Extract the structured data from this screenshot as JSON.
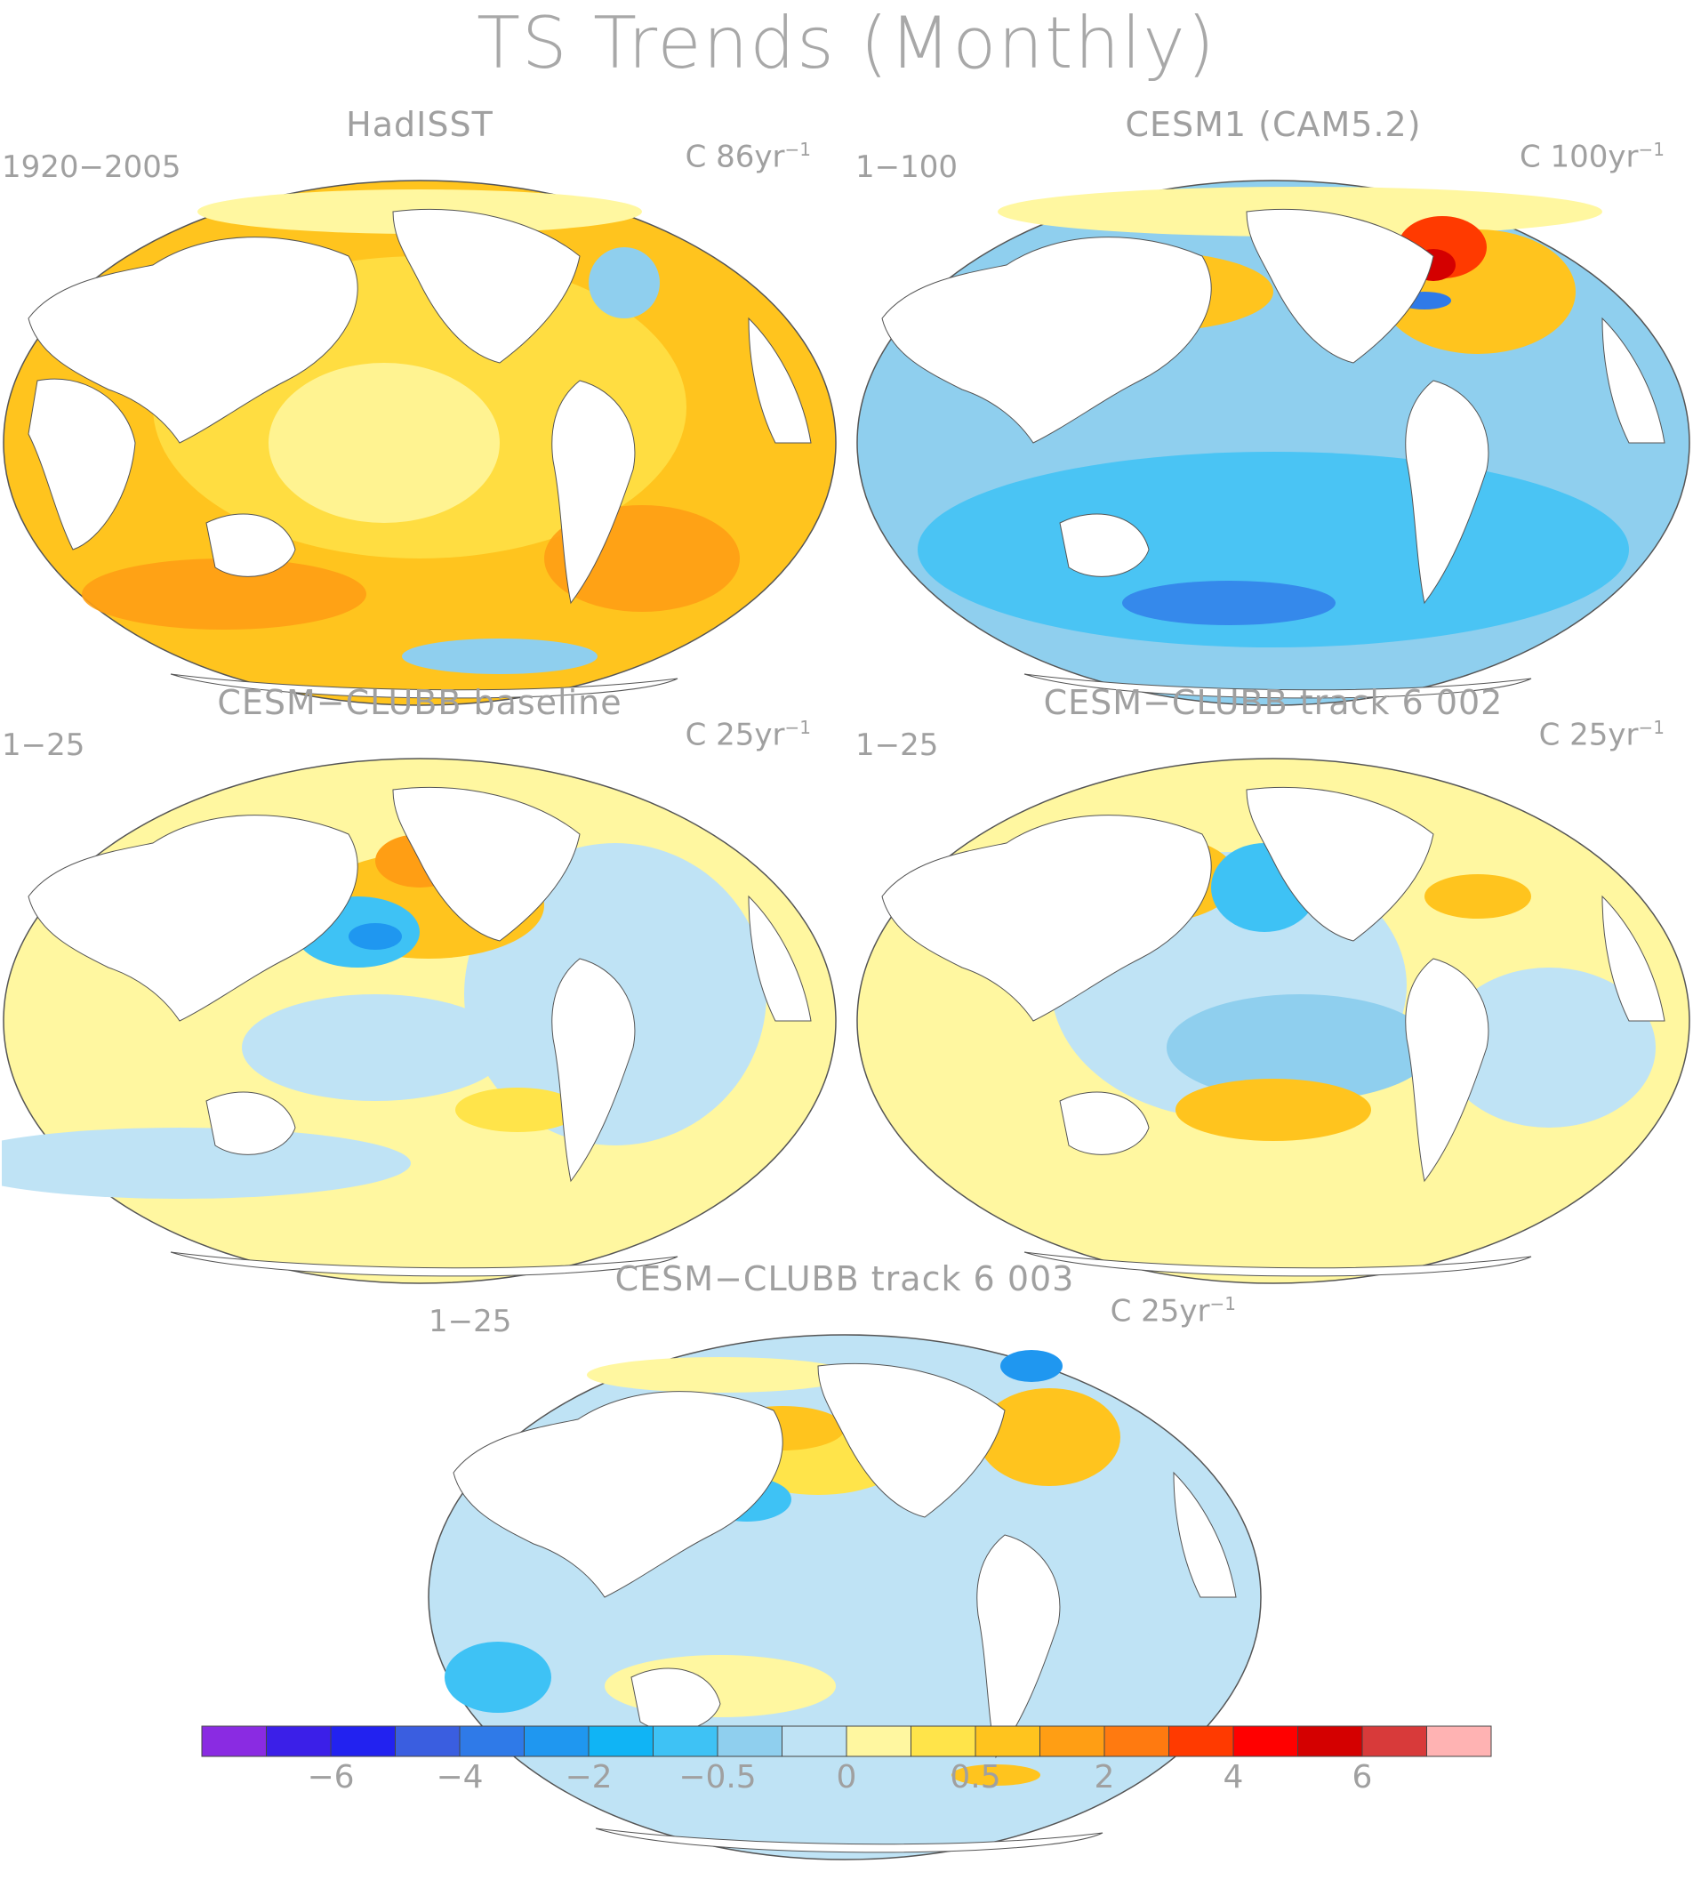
{
  "title": "TS Trends (Monthly)",
  "panels": [
    {
      "id": "hadisst",
      "title": "HadISST",
      "period": "1920−2005",
      "units_prefix": "C 86yr",
      "units_exp": "−1"
    },
    {
      "id": "cesm1",
      "title": "CESM1 (CAM5.2)",
      "period": "1−100",
      "units_prefix": "C 100yr",
      "units_exp": "−1"
    },
    {
      "id": "baseline",
      "title": "CESM−CLUBB baseline",
      "period": "1−25",
      "units_prefix": "C 25yr",
      "units_exp": "−1"
    },
    {
      "id": "track002",
      "title": "CESM−CLUBB track 6 002",
      "period": "1−25",
      "units_prefix": "C 25yr",
      "units_exp": "−1"
    },
    {
      "id": "track003",
      "title": "CESM−CLUBB track 6 003",
      "period": "1−25",
      "units_prefix": "C 25yr",
      "units_exp": "−1"
    }
  ],
  "colorbar": {
    "colors": [
      "#8a2be2",
      "#3b1fe8",
      "#2222f0",
      "#3a5ee0",
      "#2f7ae8",
      "#1f97f0",
      "#10b4f5",
      "#3ec2f5",
      "#8fcfee",
      "#bfe3f5",
      "#fff7a0",
      "#ffe44a",
      "#ffc41e",
      "#ff9e14",
      "#ff7a10",
      "#ff3a00",
      "#ff0000",
      "#d40000",
      "#d83a3a",
      "#ffb3b3"
    ],
    "labels": [
      "−6",
      "−4",
      "−2",
      "−0.5",
      "0",
      "0.5",
      "2",
      "4",
      "6"
    ],
    "label_slots": [
      2,
      4,
      6,
      8,
      10,
      12,
      14,
      16,
      18
    ]
  }
}
